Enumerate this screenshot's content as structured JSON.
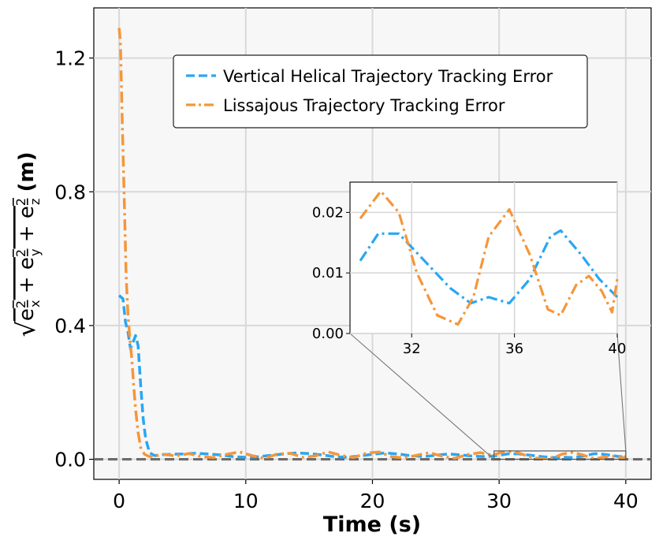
{
  "chart_data": [
    {
      "type": "line",
      "xlabel": "Time (s)",
      "ylabel": "√(e_x² + e_y² + e_z²) (m)",
      "ylabel_unit": "(m)",
      "xlim": [
        -2,
        42
      ],
      "ylim": [
        -0.06,
        1.35
      ],
      "xticks": [
        "0",
        "10",
        "20",
        "30",
        "40"
      ],
      "yticks": [
        "0.0",
        "0.4",
        "0.8",
        "1.2"
      ],
      "grid": true,
      "legend": "upper center",
      "zero_reference_line": 0.0,
      "series": [
        {
          "name": "Vertical Helical Trajectory Tracking Error",
          "color": "#2aa6f2",
          "style": "dashed",
          "x": [
            0,
            0.3,
            0.5,
            0.7,
            0.9,
            1.1,
            1.3,
            1.5,
            1.7,
            1.9,
            2.1,
            2.4,
            2.8,
            3.5,
            5,
            6,
            7,
            8,
            9,
            10,
            11,
            12,
            13,
            14,
            15,
            16,
            17,
            18,
            19,
            20,
            21,
            22,
            23,
            24,
            25,
            26,
            27,
            28,
            29,
            30,
            30.7,
            31.5,
            32.5,
            33.5,
            34.3,
            35,
            35.8,
            36.6,
            37.4,
            37.8,
            38.6,
            39.3,
            40
          ],
          "y": [
            0.49,
            0.48,
            0.41,
            0.38,
            0.33,
            0.35,
            0.37,
            0.34,
            0.22,
            0.12,
            0.06,
            0.02,
            0.011,
            0.014,
            0.016,
            0.018,
            0.016,
            0.013,
            0.008,
            0.006,
            0.008,
            0.012,
            0.016,
            0.019,
            0.017,
            0.013,
            0.008,
            0.006,
            0.01,
            0.015,
            0.019,
            0.016,
            0.011,
            0.008,
            0.012,
            0.016,
            0.013,
            0.009,
            0.008,
            0.012,
            0.0165,
            0.0165,
            0.012,
            0.0075,
            0.005,
            0.006,
            0.005,
            0.009,
            0.016,
            0.017,
            0.013,
            0.009,
            0.006
          ]
        },
        {
          "name": "Lissajous Trajectory Tracking Error",
          "color": "#f5963a",
          "style": "dashdot",
          "x": [
            0,
            0.1,
            0.25,
            0.4,
            0.55,
            0.7,
            0.85,
            1.0,
            1.15,
            1.3,
            1.5,
            1.7,
            2.0,
            2.4,
            2.9,
            3.5,
            4.5,
            5.5,
            6.5,
            7.5,
            8.5,
            9.5,
            10.5,
            11.5,
            12.5,
            13.5,
            14.5,
            15.5,
            16.5,
            17.5,
            18.5,
            19.5,
            20.5,
            21.5,
            22.5,
            23.5,
            24.5,
            25.5,
            26.5,
            27.5,
            28.5,
            29.5,
            30.0,
            30.8,
            31.5,
            32.2,
            33.0,
            33.8,
            34.4,
            35.0,
            35.8,
            36.6,
            37.3,
            37.8,
            38.4,
            38.9,
            39.4,
            39.8,
            40.0
          ],
          "y": [
            1.29,
            1.25,
            1.0,
            0.78,
            0.55,
            0.43,
            0.36,
            0.3,
            0.22,
            0.15,
            0.08,
            0.035,
            0.015,
            0.008,
            0.01,
            0.015,
            0.01,
            0.017,
            0.008,
            0.005,
            0.015,
            0.022,
            0.011,
            0.003,
            0.016,
            0.018,
            0.006,
            0.01,
            0.022,
            0.012,
            0.005,
            0.018,
            0.022,
            0.008,
            0.004,
            0.012,
            0.02,
            0.009,
            0.003,
            0.014,
            0.02,
            0.012,
            0.019,
            0.0235,
            0.02,
            0.01,
            0.003,
            0.0015,
            0.006,
            0.016,
            0.0205,
            0.013,
            0.004,
            0.003,
            0.008,
            0.0095,
            0.007,
            0.0035,
            0.009
          ]
        }
      ]
    },
    {
      "type": "line",
      "role": "inset",
      "xlim": [
        29.6,
        40
      ],
      "ylim": [
        0,
        0.025
      ],
      "xticks": [
        "32",
        "36",
        "40"
      ],
      "yticks": [
        "0.00",
        "0.01",
        "0.02"
      ],
      "grid": true
    }
  ]
}
